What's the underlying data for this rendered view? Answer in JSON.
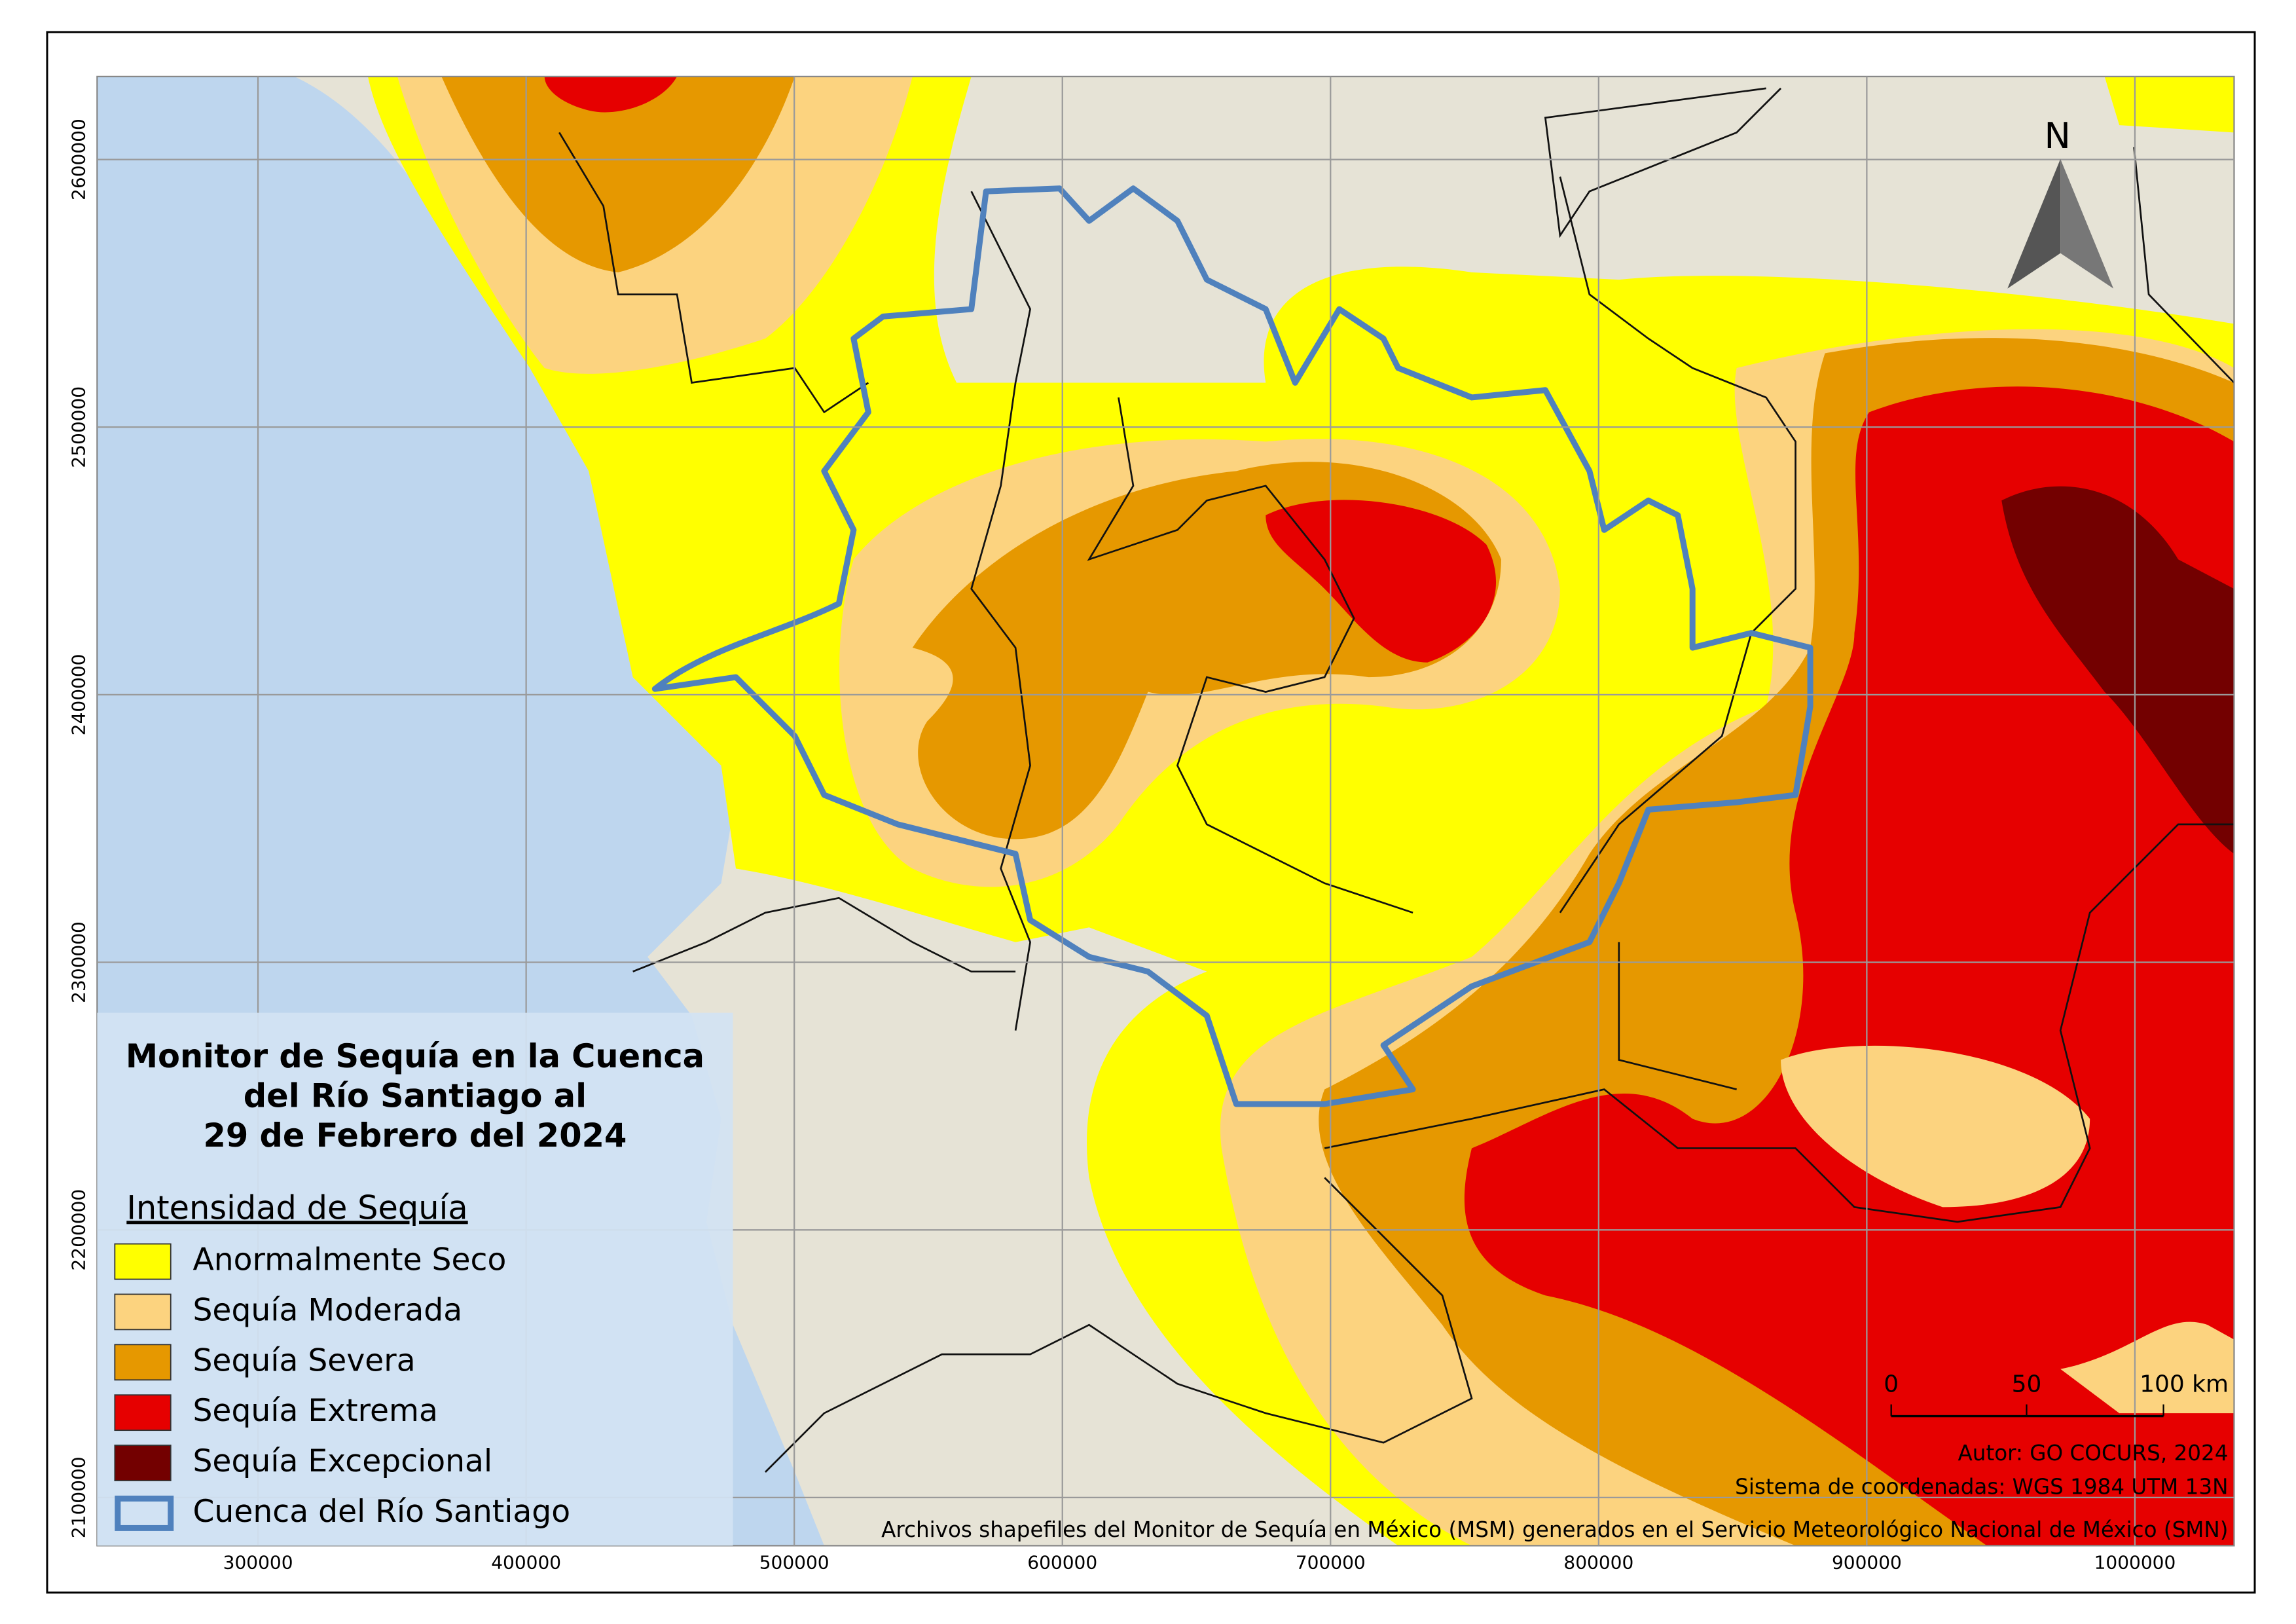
{
  "map": {
    "title": [
      "Monitor de Sequía en la Cuenca",
      "del Río Santiago al",
      "29 de Febrero del 2024"
    ],
    "legend": {
      "title": "Intensidad de Sequía",
      "items": [
        {
          "label": "Anormalmente Seco",
          "color": "#ffff00"
        },
        {
          "label": "Sequía Moderada",
          "color": "#fcd37f"
        },
        {
          "label": "Sequía Severa",
          "color": "#e69800"
        },
        {
          "label": "Sequía Extrema",
          "color": "#e60000"
        },
        {
          "label": "Sequía Excepcional",
          "color": "#730000"
        },
        {
          "label": "Cuenca del Río Santiago",
          "color": "#4f81bd"
        }
      ]
    },
    "north": "N",
    "scale_bar": [
      "0",
      "50",
      "100 km"
    ],
    "credits": [
      "Autor: GO COCURS, 2024",
      "Sistema de coordenadas: WGS 1984 UTM 13N",
      "Archivos shapefiles del Monitor de Sequía en México (MSM) generados en el Servicio Meteorológico Nacional de México (SMN)"
    ],
    "xlim": [
      240000,
      1037000
    ],
    "ylim": [
      2082000,
      2631000
    ],
    "xticks": [
      300000,
      400000,
      500000,
      600000,
      700000,
      800000,
      900000,
      1000000
    ],
    "yticks": [
      2100000,
      2200000,
      2300000,
      2400000,
      2500000,
      2600000
    ]
  }
}
